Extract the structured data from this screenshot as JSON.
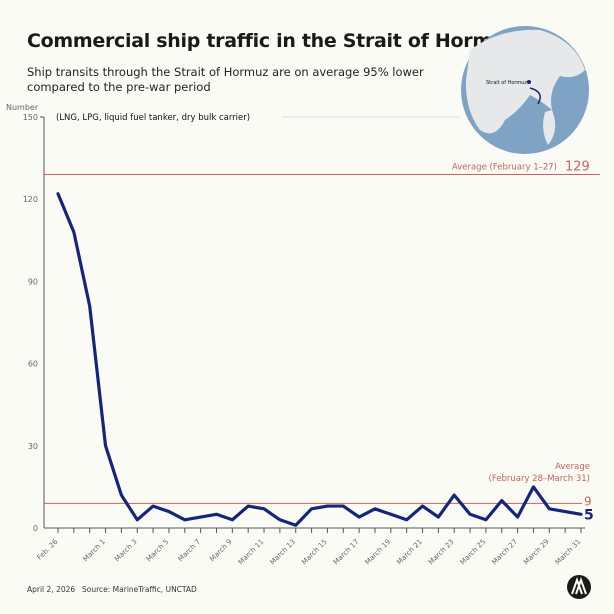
{
  "title": "Commercial ship traffic in the Strait of Hormuz",
  "subtitle": "Ship transits through the Strait of Hormuz are on average 95% lower compared to the pre-war period",
  "globe_label": "Strait of Hormuz",
  "footer": {
    "date": "April 2, 2026",
    "source": "Source: MarineTraffic, UNCTAD",
    "logo_text": "AA"
  },
  "colors": {
    "line": "#14257a",
    "average": "#c9625c",
    "background": "#fbfbf6",
    "globe_ocean": "#7fa3c4",
    "globe_land": "#e6e8ea"
  },
  "chart_data": {
    "type": "line",
    "ylabel": "Number",
    "note": "(LNG, LPG, liquid fuel tanker, dry bulk carrier)",
    "ylim": [
      0,
      150
    ],
    "yticks": [
      0,
      30,
      60,
      90,
      120,
      150
    ],
    "x": [
      "Feb. 26",
      "Feb. 27",
      "Feb. 28",
      "March 1",
      "March 2",
      "March 3",
      "March 4",
      "March 5",
      "March 6",
      "March 7",
      "March 8",
      "March 9",
      "March 10",
      "March 11",
      "March 12",
      "March 13",
      "March 14",
      "March 15",
      "March 16",
      "March 17",
      "March 18",
      "March 19",
      "March 20",
      "March 21",
      "March 22",
      "March 23",
      "March 24",
      "March 25",
      "March 26",
      "March 27",
      "March 28",
      "March 29",
      "March 30",
      "March 31"
    ],
    "xtick_labels": [
      "Feb. 26",
      "March 1",
      "March 3",
      "March 5",
      "March 7",
      "March 9",
      "March 11",
      "March 13",
      "March 15",
      "March 17",
      "March 19",
      "March 21",
      "March 23",
      "March 25",
      "March 27",
      "March 29",
      "March 31"
    ],
    "values": [
      122,
      108,
      81,
      30,
      12,
      3,
      8,
      6,
      3,
      4,
      5,
      3,
      8,
      7,
      3,
      1,
      7,
      8,
      8,
      4,
      7,
      5,
      3,
      8,
      4,
      12,
      5,
      3,
      10,
      4,
      15,
      7,
      6,
      5
    ],
    "last_value_label": "5",
    "reference_lines": [
      {
        "label": "Average (February 1–27)",
        "value": 129,
        "value_label": "129"
      },
      {
        "label_line1": "Average",
        "label_line2": "(February 28–March 31)",
        "value": 9,
        "value_label": "9"
      }
    ],
    "grid": false
  }
}
